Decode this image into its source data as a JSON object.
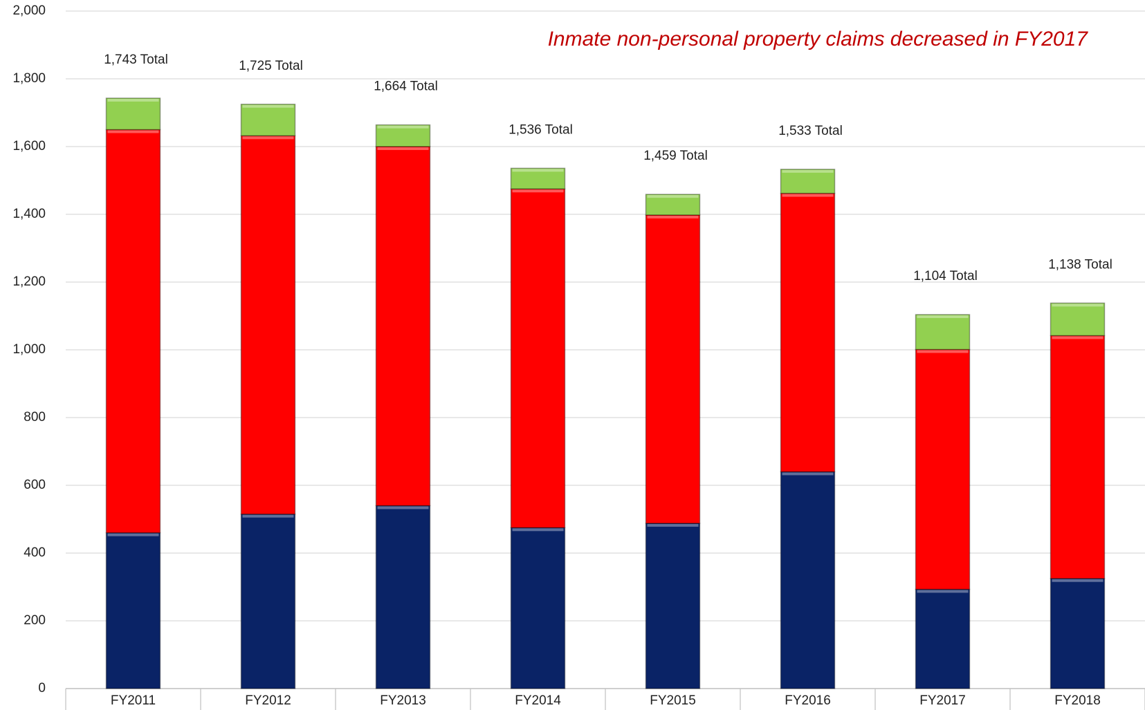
{
  "chart_data": {
    "type": "stacked_bar",
    "title": "Inmate non-personal property claims decreased in FY2017",
    "categories": [
      "FY2011",
      "FY2012",
      "FY2013",
      "FY2014",
      "FY2015",
      "FY2016",
      "FY2017",
      "FY2018"
    ],
    "series": [
      {
        "color": "#0a2366",
        "values": [
          460,
          515,
          540,
          475,
          488,
          640,
          293,
          325
        ]
      },
      {
        "color": "#ff0000",
        "values": [
          1190,
          1117,
          1060,
          1000,
          910,
          822,
          708,
          717
        ]
      },
      {
        "color": "#92d050",
        "values": [
          93,
          93,
          64,
          61,
          61,
          71,
          103,
          96
        ]
      }
    ],
    "total_labels": [
      "1,743 Total",
      "1,725 Total",
      "1,664 Total",
      "1,536 Total",
      "1,459 Total",
      "1,533 Total",
      "1,104 Total",
      "1,138 Total"
    ],
    "ylim": [
      0,
      2000
    ],
    "yticks": [
      0,
      200,
      400,
      600,
      800,
      {
        "value": 1000,
        "label": "1,000"
      },
      {
        "value": 1200,
        "label": "1,200"
      },
      {
        "value": 1400,
        "label": "1,400"
      },
      {
        "value": 1600,
        "label": "1,600"
      },
      {
        "value": 1800,
        "label": "1,800"
      },
      {
        "value": 2000,
        "label": "2,000"
      }
    ],
    "grid": true
  }
}
